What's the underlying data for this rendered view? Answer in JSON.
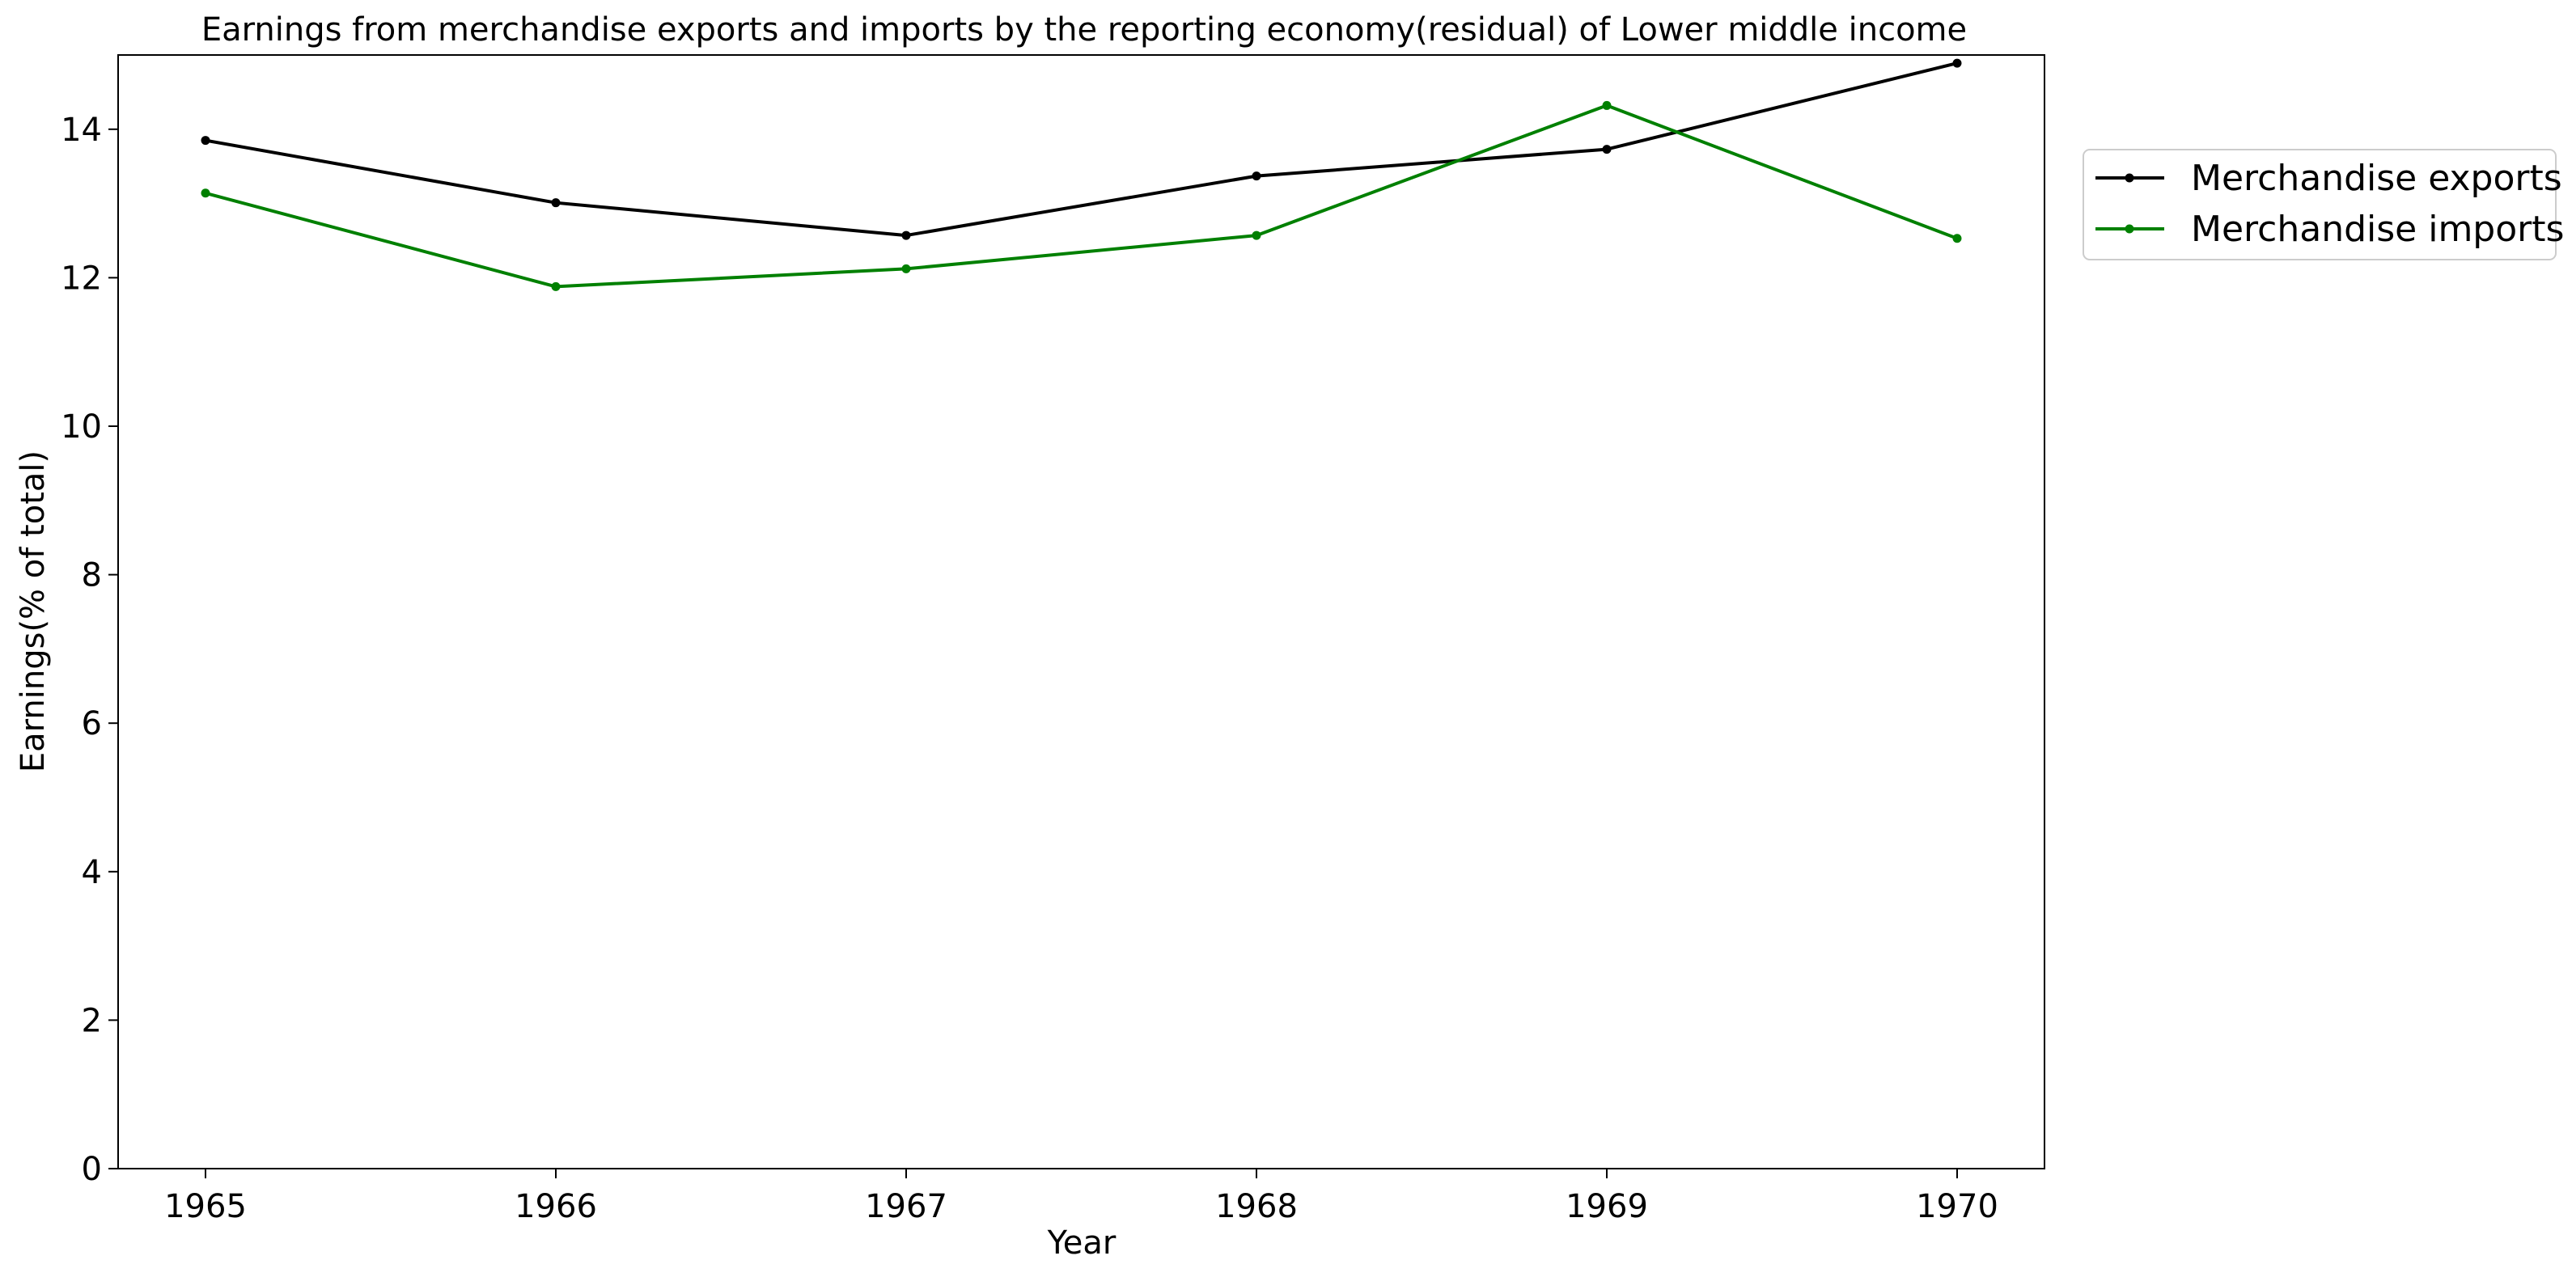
{
  "chart_data": {
    "type": "line",
    "title": "Earnings from merchandise exports and imports by the reporting economy(residual) of Lower middle income",
    "xlabel": "Year",
    "ylabel": "Earnings(% of total)",
    "x": [
      "1965",
      "1966",
      "1967",
      "1968",
      "1969",
      "1970"
    ],
    "ylim": [
      0,
      15
    ],
    "yticks": [
      "0",
      "2",
      "4",
      "6",
      "8",
      "10",
      "12",
      "14"
    ],
    "grid": false,
    "legend_position": "outside top-right",
    "series": [
      {
        "name": "Merchandise exports",
        "color": "#000000",
        "marker": "dot",
        "values": [
          13.85,
          13.01,
          12.57,
          13.37,
          13.73,
          14.89
        ]
      },
      {
        "name": "Merchandise imports",
        "color": "#008000",
        "marker": "dot",
        "values": [
          13.14,
          11.88,
          12.12,
          12.57,
          14.32,
          12.53
        ]
      }
    ]
  }
}
